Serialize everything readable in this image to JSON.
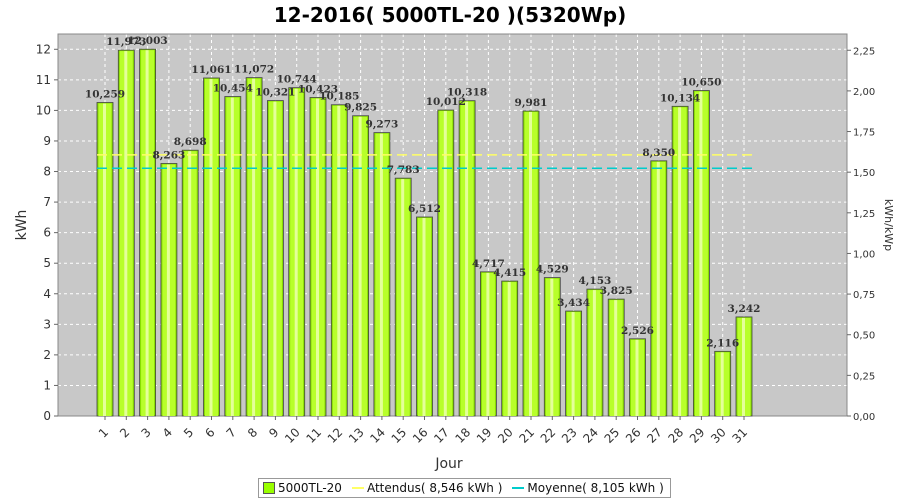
{
  "chart_data": {
    "type": "bar",
    "title": "12-2016( 5000TL-20 )(5320Wp)",
    "xlabel": "Jour",
    "ylabel": "kWh",
    "ylabel_right": "kWh/kWp",
    "categories": [
      "1",
      "2",
      "3",
      "4",
      "5",
      "6",
      "7",
      "8",
      "9",
      "10",
      "11",
      "12",
      "13",
      "14",
      "15",
      "16",
      "17",
      "18",
      "19",
      "20",
      "21",
      "22",
      "23",
      "24",
      "25",
      "26",
      "27",
      "28",
      "29",
      "30",
      "31"
    ],
    "series": [
      {
        "name": "5000TL-20",
        "color": "#99ff00",
        "values": [
          10.259,
          11.973,
          12.003,
          8.263,
          8.698,
          11.061,
          10.454,
          11.072,
          10.321,
          10.744,
          10.423,
          10.185,
          9.825,
          9.273,
          7.783,
          6.512,
          10.012,
          10.318,
          4.717,
          4.415,
          9.981,
          4.529,
          3.434,
          4.153,
          3.825,
          2.526,
          8.35,
          10.134,
          10.65,
          2.116,
          3.242
        ],
        "labels": [
          "10,259",
          "11,973",
          "12,003",
          "8,263",
          "8,698",
          "11,061",
          "10,454",
          "11,072",
          "10,321",
          "10,744",
          "10,423",
          "10,185",
          "9,825",
          "9,273",
          "7,783",
          "6,512",
          "10,012",
          "10,318",
          "4,717",
          "4,415",
          "9,981",
          "4,529",
          "3,434",
          "4,153",
          "3,825",
          "2,526",
          "8,350",
          "10,134",
          "10,650",
          "2,116",
          "3,242"
        ]
      }
    ],
    "reference_lines": [
      {
        "name": "Attendus( 8,546 kWh )",
        "value": 8.546,
        "color": "#ffff66"
      },
      {
        "name": "Moyenne( 8,105 kWh )",
        "value": 8.105,
        "color": "#00cccc"
      }
    ],
    "ylim": [
      0,
      12.5
    ],
    "yticks": [
      0,
      1,
      2,
      3,
      4,
      5,
      6,
      7,
      8,
      9,
      10,
      11,
      12
    ],
    "ylim_right": [
      0,
      2.35
    ],
    "yticks_right": [
      "0,00",
      "0,25",
      "0,50",
      "0,75",
      "1,00",
      "1,25",
      "1,50",
      "1,75",
      "2,00",
      "2,25"
    ],
    "yticks_right_values": [
      0,
      0.25,
      0.5,
      0.75,
      1.0,
      1.25,
      1.5,
      1.75,
      2.0,
      2.25
    ],
    "grid": true,
    "legend_position": "bottom",
    "plot_background": "#c8c8c8"
  }
}
